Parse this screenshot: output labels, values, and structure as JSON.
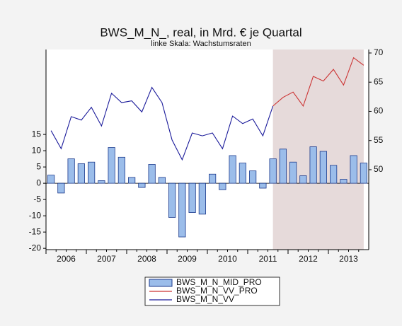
{
  "chart_data": {
    "type": "combo",
    "title": "BWS_M_N_, real, in Mrd. € je Quartal",
    "subtitle": "linke Skala: Wachstumsraten",
    "categories": [
      "2006",
      null,
      null,
      null,
      "2007",
      null,
      null,
      null,
      "2008",
      null,
      null,
      null,
      "2009",
      null,
      null,
      null,
      "2010",
      null,
      null,
      null,
      "2011",
      null,
      null,
      null,
      "2012",
      null,
      null,
      null,
      "2013",
      null,
      null,
      null
    ],
    "ylim": [
      -20.4,
      41.1
    ],
    "yticks": [
      -20,
      -15,
      -10,
      -5,
      0,
      5,
      10,
      15
    ],
    "y2lim": [
      36.3,
      70.6
    ],
    "y2ticks": [
      50,
      55,
      60,
      65,
      70
    ],
    "forecast_shading": "#e6dada",
    "series": [
      {
        "name": "BWS_M_N_MID_PRO",
        "type": "bar",
        "color": "#9bbdea",
        "edge": "#1c3a8c",
        "values": [
          2.5,
          -3,
          7.5,
          6,
          6.5,
          0.8,
          11,
          8,
          1.8,
          -1.3,
          5.8,
          1.8,
          -10.5,
          -16.5,
          -9,
          -9.5,
          2.8,
          -2,
          8.5,
          6.2,
          3.8,
          -1.5,
          7.5,
          10.5,
          6.5,
          2.3,
          11.2,
          9.8,
          5.5,
          1.2,
          8.5,
          6.2
        ]
      },
      {
        "name": "BWS_M_N_VV_PRO",
        "type": "line",
        "axis": "y2",
        "color": "#cc3333",
        "values": [
          null,
          null,
          null,
          null,
          null,
          null,
          null,
          null,
          null,
          null,
          null,
          null,
          null,
          null,
          null,
          null,
          null,
          null,
          null,
          null,
          null,
          null,
          60.9,
          62.4,
          63.3,
          60.9,
          66.0,
          65.2,
          67.2,
          64.5,
          69.2,
          67.9
        ]
      },
      {
        "name": "BWS_M_N_VV",
        "type": "line",
        "axis": "y2",
        "color": "#1a1a9a",
        "values": [
          56.7,
          53.6,
          59.1,
          58.5,
          60.7,
          57.5,
          63.1,
          61.5,
          61.8,
          59.9,
          64.1,
          61.5,
          55.1,
          51.7,
          56.3,
          55.8,
          56.3,
          53.6,
          59.2,
          57.9,
          58.7,
          55.8,
          60.9,
          null,
          null,
          null,
          null,
          null,
          null,
          null,
          null,
          null
        ]
      }
    ]
  }
}
